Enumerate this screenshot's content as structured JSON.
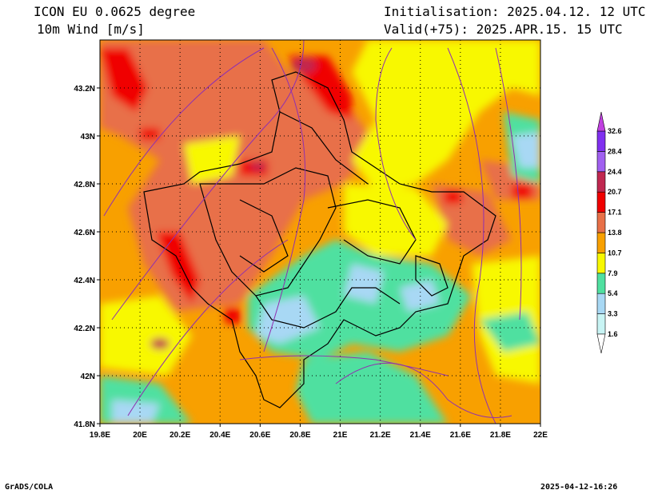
{
  "header": {
    "model": "ICON EU 0.0625 degree",
    "variable": "10m Wind [m/s]",
    "init": "Initialisation: 2025.04.12. 12 UTC",
    "valid": "Valid(+75): 2025.APR.15. 15 UTC"
  },
  "footer": {
    "credit": "GrADS/COLA",
    "timestamp": "2025-04-12-16:26"
  },
  "map": {
    "lon_range": [
      19.8,
      22.0
    ],
    "lat_range": [
      41.8,
      43.4
    ],
    "x_ticks": [
      "19.8E",
      "20E",
      "20.2E",
      "20.4E",
      "20.6E",
      "20.8E",
      "21E",
      "21.2E",
      "21.4E",
      "21.6E",
      "21.8E",
      "22E"
    ],
    "y_ticks": [
      "41.8N",
      "42N",
      "42.2N",
      "42.4N",
      "42.6N",
      "42.8N",
      "43N",
      "43.2N"
    ],
    "gridlines": "dotted"
  },
  "legend": {
    "levels": [
      "1.6",
      "3.3",
      "5.4",
      "7.9",
      "10.7",
      "13.8",
      "17.1",
      "20.7",
      "24.4",
      "28.4",
      "32.6"
    ],
    "colors": [
      "#c8f4f4",
      "#a8d8f4",
      "#50e0a0",
      "#f8f800",
      "#f8a000",
      "#e87048",
      "#f00000",
      "#c02850",
      "#a060f0",
      "#8030f0",
      "#c040e0"
    ]
  },
  "colors": {
    "calm": "#a8d8f4",
    "light": "#50e0a0",
    "moderate": "#f8f800",
    "fresh": "#f8a000",
    "strong": "#e87048",
    "gale": "#f00000",
    "storm": "#c02850",
    "streamline": "#9030b0",
    "border": "#000000"
  }
}
